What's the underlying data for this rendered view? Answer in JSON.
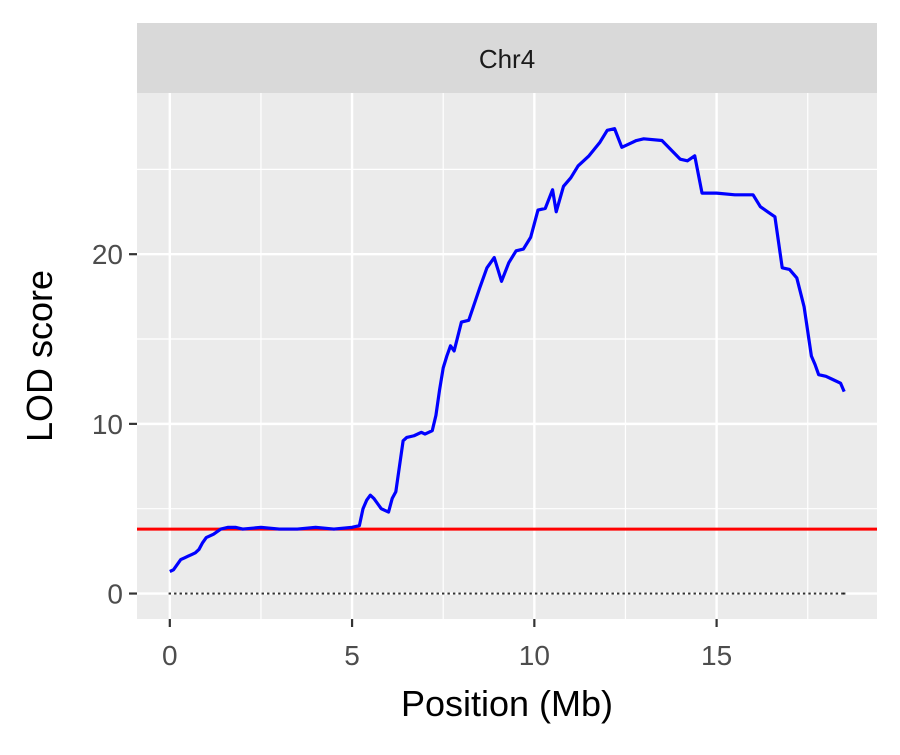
{
  "chart_data": {
    "type": "line",
    "facet_label": "Chr4",
    "xlabel": "Position (Mb)",
    "ylabel": "LOD score",
    "xlim": [
      -0.9,
      19.4
    ],
    "ylim": [
      -1.5,
      29.5
    ],
    "x_ticks": [
      0,
      5,
      10,
      15
    ],
    "y_ticks": [
      0,
      10,
      20
    ],
    "x_minor_gridlines": [
      2.5,
      7.5,
      12.5,
      17.5
    ],
    "y_minor_gridlines": [
      5,
      15,
      25
    ],
    "grid": true,
    "background_color": "#EBEBEB",
    "strip_color": "#D9D9D9",
    "series": [
      {
        "color": "#0000FF",
        "x": [
          0.0,
          0.1,
          0.2,
          0.3,
          0.4,
          0.5,
          0.6,
          0.7,
          0.8,
          0.9,
          1.0,
          1.2,
          1.4,
          1.6,
          1.8,
          2.0,
          2.5,
          3.0,
          3.5,
          4.0,
          4.5,
          5.0,
          5.2,
          5.3,
          5.4,
          5.5,
          5.6,
          5.7,
          5.8,
          6.0,
          6.1,
          6.2,
          6.3,
          6.4,
          6.5,
          6.7,
          6.9,
          7.0,
          7.2,
          7.3,
          7.4,
          7.5,
          7.6,
          7.7,
          7.8,
          8.0,
          8.2,
          8.5,
          8.7,
          8.9,
          9.1,
          9.3,
          9.5,
          9.7,
          9.9,
          10.1,
          10.3,
          10.5,
          10.6,
          10.8,
          11.0,
          11.2,
          11.5,
          11.8,
          12.0,
          12.2,
          12.4,
          12.6,
          12.8,
          13.0,
          13.5,
          14.0,
          14.2,
          14.4,
          14.6,
          15.0,
          15.5,
          16.0,
          16.2,
          16.4,
          16.6,
          16.8,
          17.0,
          17.2,
          17.4,
          17.6,
          17.7,
          17.8,
          18.0,
          18.2,
          18.4,
          18.5
        ],
        "values": [
          1.3,
          1.4,
          1.7,
          2.0,
          2.1,
          2.2,
          2.3,
          2.4,
          2.6,
          3.0,
          3.3,
          3.5,
          3.8,
          3.9,
          3.9,
          3.8,
          3.9,
          3.8,
          3.8,
          3.9,
          3.8,
          3.9,
          4.0,
          5.0,
          5.5,
          5.8,
          5.6,
          5.3,
          5.0,
          4.8,
          5.6,
          6.0,
          7.5,
          9.0,
          9.2,
          9.3,
          9.5,
          9.4,
          9.6,
          10.5,
          12.0,
          13.3,
          14.0,
          14.6,
          14.3,
          16.0,
          16.1,
          18.0,
          19.2,
          19.8,
          18.4,
          19.5,
          20.2,
          20.3,
          21.0,
          22.6,
          22.7,
          23.8,
          22.5,
          24.0,
          24.5,
          25.2,
          25.8,
          26.6,
          27.3,
          27.4,
          26.3,
          26.5,
          26.7,
          26.8,
          26.7,
          25.6,
          25.5,
          25.8,
          23.6,
          23.6,
          23.5,
          23.5,
          22.8,
          22.5,
          22.2,
          19.2,
          19.1,
          18.6,
          16.9,
          14.0,
          13.5,
          12.9,
          12.8,
          12.6,
          12.4,
          11.9
        ]
      }
    ],
    "threshold": {
      "value": 3.8,
      "color": "#FF0000"
    },
    "marker_rug": {
      "color": "#000000",
      "y": 0,
      "x": [
        0.0,
        0.15,
        0.3,
        0.45,
        0.6,
        0.75,
        0.9,
        1.05,
        1.2,
        1.35,
        1.5,
        1.65,
        1.8,
        1.95,
        2.1,
        2.25,
        2.4,
        2.55,
        2.7,
        2.85,
        3.0,
        3.15,
        3.3,
        3.45,
        3.6,
        3.75,
        3.9,
        4.05,
        4.2,
        4.35,
        4.5,
        4.65,
        4.8,
        4.95,
        5.1,
        5.25,
        5.4,
        5.55,
        5.7,
        5.85,
        6.0,
        6.15,
        6.3,
        6.45,
        6.6,
        6.75,
        6.9,
        7.05,
        7.2,
        7.35,
        7.5,
        7.65,
        7.8,
        7.95,
        8.1,
        8.25,
        8.4,
        8.55,
        8.7,
        8.85,
        9.0,
        9.15,
        9.3,
        9.45,
        9.6,
        9.75,
        9.9,
        10.05,
        10.2,
        10.35,
        10.5,
        10.65,
        10.8,
        10.95,
        11.1,
        11.25,
        11.4,
        11.55,
        11.7,
        11.85,
        12.0,
        12.15,
        12.3,
        12.45,
        12.6,
        12.75,
        12.9,
        13.05,
        13.2,
        13.35,
        13.5,
        13.65,
        13.8,
        13.95,
        14.1,
        14.25,
        14.4,
        14.55,
        14.7,
        14.85,
        15.0,
        15.15,
        15.3,
        15.45,
        15.6,
        15.75,
        15.9,
        16.05,
        16.2,
        16.35,
        16.5,
        16.65,
        16.8,
        16.95,
        17.1,
        17.25,
        17.4,
        17.55,
        17.7,
        17.85,
        18.0,
        18.15,
        18.3,
        18.45,
        18.5
      ]
    }
  }
}
